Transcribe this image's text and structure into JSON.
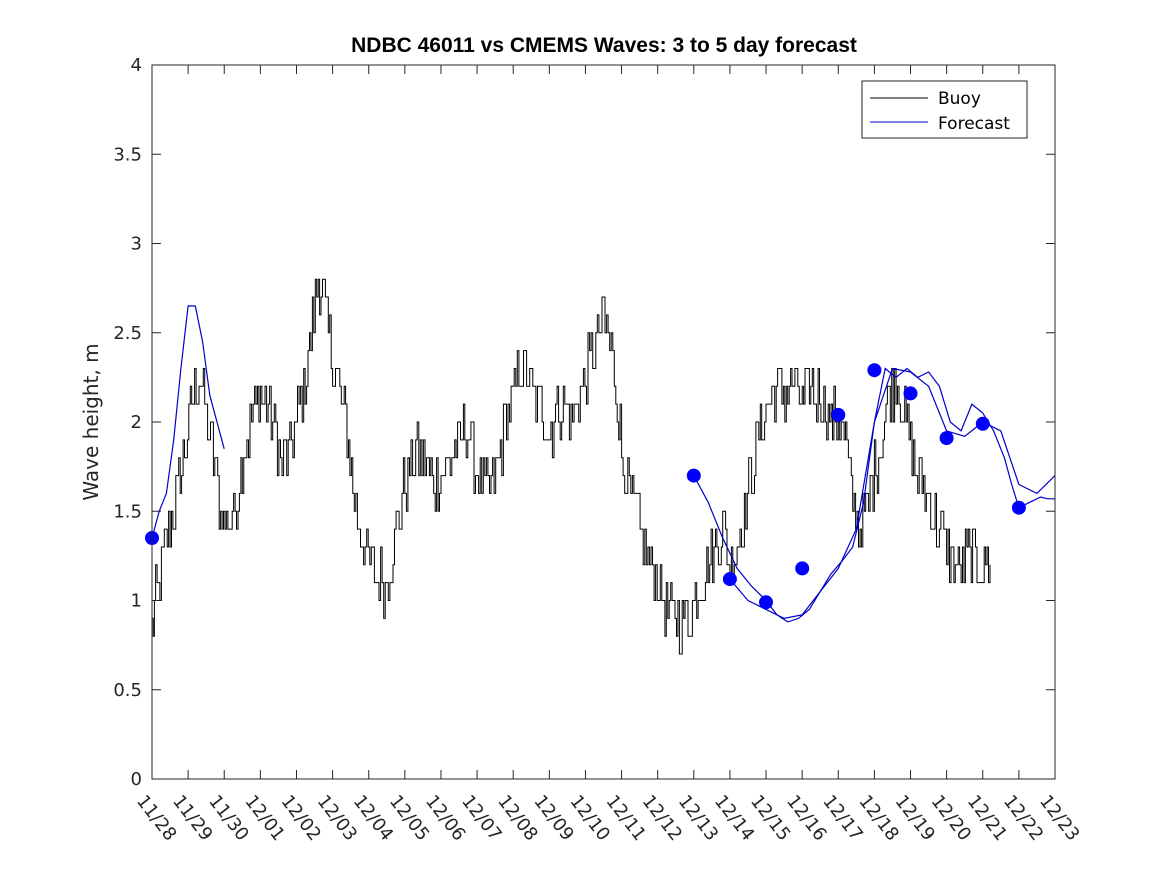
{
  "chart_data": {
    "type": "line",
    "title": "NDBC 46011 vs CMEMS Waves: 3 to 5 day forecast",
    "xlabel": "",
    "ylabel": "Wave height, m",
    "ylim": [
      0,
      4
    ],
    "xlim": [
      0,
      25
    ],
    "yticks": [
      0,
      0.5,
      1,
      1.5,
      2,
      2.5,
      3,
      3.5,
      4
    ],
    "ytick_labels": [
      "0",
      "0.5",
      "1",
      "1.5",
      "2",
      "2.5",
      "3",
      "3.5",
      "4"
    ],
    "xtick_labels": [
      "11/28",
      "11/29",
      "11/30",
      "12/01",
      "12/02",
      "12/03",
      "12/04",
      "12/05",
      "12/06",
      "12/07",
      "12/08",
      "12/09",
      "12/10",
      "12/11",
      "12/12",
      "12/13",
      "12/14",
      "12/15",
      "12/16",
      "12/17",
      "12/18",
      "12/19",
      "12/20",
      "12/21",
      "12/22",
      "12/23"
    ],
    "grid": false,
    "legend_position": "top-right",
    "series": [
      {
        "name": "Buoy",
        "color": "#000000",
        "style": "jagged",
        "x": [
          0,
          0.1,
          0.3,
          0.5,
          0.7,
          0.9,
          1.1,
          1.3,
          1.5,
          1.7,
          1.9,
          2.1,
          2.3,
          2.5,
          2.8,
          3.0,
          3.3,
          3.6,
          3.9,
          4.2,
          4.4,
          4.6,
          4.8,
          5.0,
          5.2,
          5.4,
          5.6,
          5.9,
          6.2,
          6.5,
          6.8,
          7.0,
          7.3,
          7.6,
          7.8,
          8.0,
          8.3,
          8.5,
          8.7,
          9.0,
          9.3,
          9.6,
          9.9,
          10.2,
          10.5,
          10.8,
          11.0,
          11.3,
          11.6,
          11.9,
          12.2,
          12.5,
          12.8,
          13.0,
          13.3,
          13.6,
          13.9,
          14.2,
          14.4,
          14.6,
          14.8,
          15.0,
          15.2,
          15.4,
          15.6,
          15.8,
          16.0,
          16.2,
          16.4,
          16.6,
          16.8,
          17.0,
          17.2,
          17.4,
          17.6,
          17.8,
          18.0,
          18.2,
          18.4,
          18.6,
          18.8,
          19.0,
          19.2,
          19.4,
          19.6,
          19.8,
          20.0,
          20.2,
          20.4,
          20.6,
          20.8,
          21.0,
          21.2,
          21.4,
          21.6,
          21.8,
          22.0,
          22.2,
          22.4,
          22.6,
          22.8,
          23.0,
          23.2
        ],
        "values": [
          0.85,
          1.0,
          1.2,
          1.45,
          1.6,
          1.85,
          2.1,
          2.25,
          2.05,
          1.8,
          1.5,
          1.45,
          1.5,
          1.8,
          2.05,
          2.15,
          2.05,
          1.75,
          1.9,
          2.2,
          2.5,
          2.8,
          2.6,
          2.35,
          2.15,
          1.95,
          1.55,
          1.3,
          1.15,
          1.1,
          1.45,
          1.65,
          1.85,
          1.75,
          1.65,
          1.7,
          1.8,
          1.9,
          1.95,
          1.75,
          1.6,
          1.8,
          2.1,
          2.3,
          2.2,
          2.05,
          1.95,
          2.1,
          2.0,
          2.2,
          2.4,
          2.6,
          2.3,
          1.85,
          1.55,
          1.3,
          1.15,
          1.0,
          0.92,
          0.88,
          0.9,
          1.0,
          1.1,
          1.2,
          1.3,
          1.4,
          1.2,
          1.3,
          1.5,
          1.7,
          1.9,
          2.05,
          2.15,
          2.2,
          2.15,
          2.2,
          2.1,
          2.2,
          2.15,
          2.1,
          2.0,
          2.05,
          1.9,
          1.55,
          1.4,
          1.5,
          1.75,
          1.9,
          2.15,
          2.25,
          2.05,
          1.85,
          1.7,
          1.6,
          1.5,
          1.4,
          1.3,
          1.2,
          1.2,
          1.25,
          1.2,
          1.2,
          1.2
        ]
      },
      {
        "name": "Forecast",
        "color": "#0000cc",
        "segments": [
          {
            "x": [
              0,
              0.2,
              0.4,
              0.6,
              0.8,
              1.0,
              1.2,
              1.4,
              1.6,
              1.8,
              2.0
            ],
            "values": [
              1.35,
              1.5,
              1.6,
              1.9,
              2.3,
              2.65,
              2.65,
              2.45,
              2.15,
              2.0,
              1.85
            ]
          },
          {
            "x": [
              15.0,
              15.4,
              15.8,
              16.2,
              16.6,
              17.0,
              17.3,
              17.6,
              17.9,
              18.2,
              18.5,
              18.8,
              19.1,
              19.4,
              19.7,
              20.0,
              20.3,
              20.6,
              20.9,
              21.2,
              21.5,
              21.8,
              22.1,
              22.4,
              22.7,
              23.0,
              23.3,
              23.6,
              23.8,
              24.0,
              24.3,
              24.6,
              24.8,
              25.0
            ],
            "values": [
              1.7,
              1.55,
              1.35,
              1.18,
              1.08,
              1.0,
              0.92,
              0.88,
              0.9,
              0.95,
              1.05,
              1.15,
              1.22,
              1.3,
              1.55,
              2.0,
              2.3,
              2.25,
              2.3,
              2.25,
              2.28,
              2.2,
              2.0,
              1.95,
              2.1,
              2.05,
              1.95,
              1.8,
              1.65,
              1.52,
              1.55,
              1.58,
              1.57,
              1.57
            ]
          },
          {
            "x": [
              16.0,
              16.5,
              17.0,
              17.5,
              18.0,
              18.5,
              19.0,
              19.5,
              20.0,
              20.5,
              21.0,
              21.5,
              22.0,
              22.5,
              23.0,
              23.5,
              24.0,
              24.5,
              25.0
            ],
            "values": [
              1.12,
              1.0,
              0.95,
              0.9,
              0.92,
              1.05,
              1.18,
              1.4,
              2.0,
              2.3,
              2.28,
              2.2,
              1.95,
              1.92,
              2.0,
              1.95,
              1.65,
              1.6,
              1.7
            ]
          }
        ],
        "markers": {
          "x": [
            0,
            15.0,
            16.0,
            17.0,
            18.0,
            19.0,
            20.0,
            21.0,
            22.0,
            23.0,
            24.0
          ],
          "values": [
            1.35,
            1.7,
            1.12,
            0.99,
            1.18,
            2.04,
            2.29,
            2.16,
            1.91,
            1.99,
            1.52
          ]
        }
      }
    ]
  }
}
